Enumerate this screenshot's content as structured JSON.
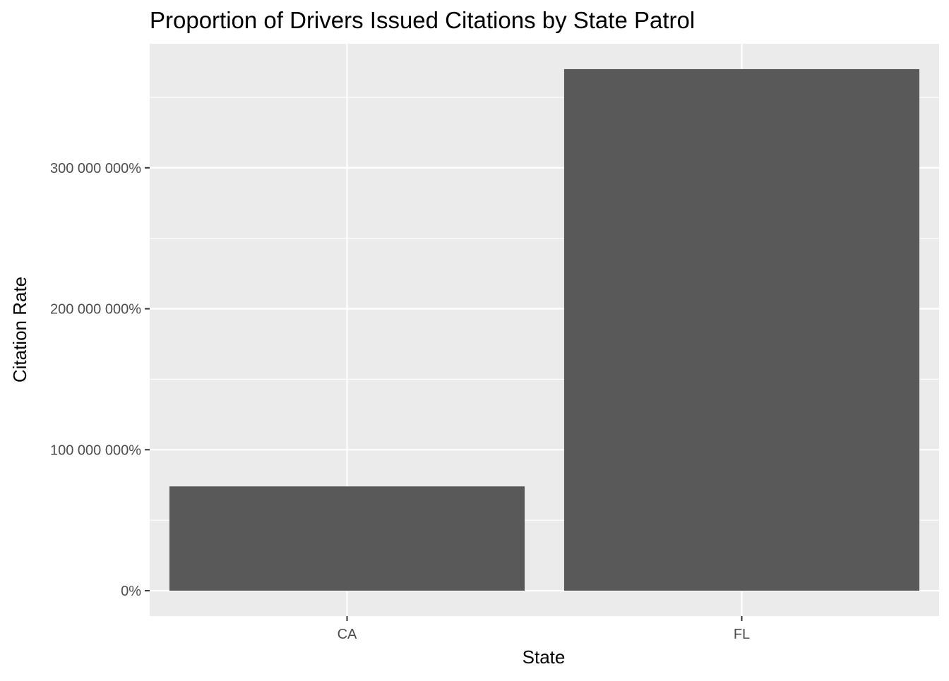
{
  "chart_data": {
    "type": "bar",
    "title": "Proportion of Drivers Issued Citations by State Patrol",
    "xlabel": "State",
    "ylabel": "Citation Rate",
    "categories": [
      "CA",
      "FL"
    ],
    "values": [
      740000,
      3700000
    ],
    "ylim": [
      -180000,
      3880000
    ],
    "y_ticks": [
      0,
      1000000,
      2000000,
      3000000
    ],
    "y_tick_labels": [
      "0%",
      "100 000 000%",
      "200 000 000%",
      "300 000 000%"
    ],
    "grid": true,
    "legend": "none",
    "colors": {
      "panel_background": "#ebebeb",
      "grid_line": "#ffffff",
      "bar_fill": "#595959",
      "tick_label": "#4d4d4d",
      "tick_mark": "#333333"
    }
  }
}
